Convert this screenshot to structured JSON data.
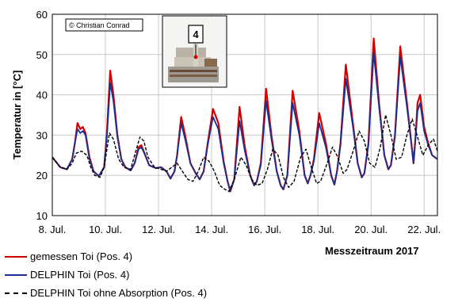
{
  "copyright": "© Christian Conrad",
  "inset": {
    "label": "4"
  },
  "period_label": "Messzeitraum 2017",
  "colors": {
    "measured": "#d40000",
    "delphin": "#1a2f8f",
    "no_absorption": "#000000"
  },
  "chart_data": {
    "type": "line",
    "title": "",
    "xlabel": "",
    "ylabel": "Temperatur in  [°C]",
    "x_unit": "day of July 2017",
    "xlim": [
      8,
      22.5
    ],
    "ylim": [
      10,
      60
    ],
    "x_ticks": [
      8,
      10,
      12,
      14,
      16,
      18,
      20,
      22
    ],
    "x_tick_labels": [
      "8. Jul.",
      "10. Jul.",
      "12. Jul.",
      "14. Jul.",
      "16. Jul.",
      "18. Jul.",
      "20. Jul.",
      "22. Jul."
    ],
    "y_ticks": [
      10,
      20,
      30,
      40,
      50,
      60
    ],
    "y_tick_labels": [
      "10",
      "20",
      "30",
      "40",
      "50",
      "60"
    ],
    "grid": true,
    "legend_position": "bottom-left",
    "series": [
      {
        "name": "gemessen Toi (Pos. 4)",
        "style": "solid",
        "x": [
          8.0,
          8.3,
          8.55,
          8.75,
          8.85,
          8.95,
          9.05,
          9.15,
          9.25,
          9.4,
          9.55,
          9.75,
          9.95,
          10.05,
          10.18,
          10.3,
          10.45,
          10.6,
          10.75,
          10.95,
          11.1,
          11.25,
          11.35,
          11.5,
          11.65,
          11.9,
          12.1,
          12.3,
          12.45,
          12.6,
          12.7,
          12.85,
          13.0,
          13.2,
          13.4,
          13.55,
          13.7,
          13.85,
          14.05,
          14.25,
          14.45,
          14.6,
          14.7,
          14.85,
          15.05,
          15.25,
          15.45,
          15.6,
          15.7,
          15.85,
          16.05,
          16.25,
          16.45,
          16.6,
          16.7,
          16.85,
          17.05,
          17.3,
          17.5,
          17.62,
          17.72,
          17.85,
          18.05,
          18.3,
          18.5,
          18.62,
          18.72,
          18.85,
          19.05,
          19.3,
          19.5,
          19.65,
          19.75,
          19.9,
          20.1,
          20.3,
          20.5,
          20.65,
          20.75,
          20.9,
          21.1,
          21.35,
          21.55,
          21.6,
          21.68,
          21.75,
          21.85,
          22.0,
          22.15,
          22.3,
          22.5
        ],
        "y": [
          24.5,
          22.0,
          21.5,
          24.0,
          28.0,
          33.0,
          31.5,
          32.0,
          30.5,
          24.5,
          21.0,
          19.8,
          22.0,
          30.0,
          46.0,
          40.0,
          30.0,
          24.0,
          22.0,
          21.2,
          23.0,
          27.0,
          27.5,
          25.0,
          22.5,
          21.8,
          22.0,
          21.0,
          19.2,
          21.0,
          25.0,
          34.5,
          30.0,
          23.0,
          20.5,
          19.0,
          21.0,
          28.0,
          36.5,
          33.0,
          23.5,
          18.5,
          16.0,
          19.0,
          37.0,
          27.0,
          20.0,
          17.5,
          18.5,
          23.0,
          41.5,
          30.0,
          21.0,
          17.5,
          16.5,
          20.0,
          41.0,
          31.0,
          20.0,
          18.0,
          20.0,
          24.0,
          35.5,
          28.0,
          20.0,
          17.7,
          21.0,
          28.0,
          47.5,
          34.0,
          23.0,
          19.5,
          20.5,
          28.0,
          54.0,
          38.0,
          25.0,
          21.5,
          22.5,
          30.0,
          52.0,
          38.0,
          26.0,
          23.0,
          30.0,
          38.0,
          40.0,
          32.0,
          28.0,
          25.0,
          24.0
        ]
      },
      {
        "name": "DELPHIN Toi (Pos. 4)",
        "style": "solid",
        "x": [
          8.0,
          8.3,
          8.55,
          8.75,
          8.85,
          8.95,
          9.05,
          9.15,
          9.25,
          9.4,
          9.55,
          9.75,
          9.95,
          10.05,
          10.18,
          10.3,
          10.45,
          10.6,
          10.75,
          10.95,
          11.1,
          11.25,
          11.35,
          11.5,
          11.65,
          11.9,
          12.1,
          12.3,
          12.45,
          12.6,
          12.7,
          12.85,
          13.0,
          13.2,
          13.4,
          13.55,
          13.7,
          13.85,
          14.05,
          14.25,
          14.45,
          14.6,
          14.7,
          14.85,
          15.05,
          15.25,
          15.45,
          15.6,
          15.7,
          15.85,
          16.05,
          16.25,
          16.45,
          16.6,
          16.7,
          16.85,
          17.05,
          17.3,
          17.5,
          17.62,
          17.72,
          17.85,
          18.05,
          18.3,
          18.5,
          18.62,
          18.72,
          18.85,
          19.05,
          19.3,
          19.5,
          19.65,
          19.75,
          19.9,
          20.1,
          20.3,
          20.5,
          20.65,
          20.75,
          20.9,
          21.1,
          21.35,
          21.55,
          21.6,
          21.68,
          21.75,
          21.85,
          22.0,
          22.15,
          22.3,
          22.5
        ],
        "y": [
          24.5,
          22.0,
          21.5,
          24.0,
          28.0,
          31.5,
          30.5,
          31.0,
          30.0,
          24.0,
          21.0,
          19.8,
          22.0,
          29.0,
          43.0,
          38.5,
          29.5,
          24.0,
          22.0,
          21.2,
          23.0,
          26.5,
          27.0,
          25.0,
          22.5,
          21.8,
          22.0,
          21.0,
          19.2,
          21.0,
          25.0,
          33.0,
          29.0,
          23.0,
          20.5,
          19.0,
          21.0,
          27.5,
          34.5,
          31.5,
          23.0,
          18.5,
          16.0,
          19.0,
          33.5,
          26.0,
          20.0,
          17.5,
          18.5,
          22.5,
          38.5,
          29.0,
          21.0,
          17.5,
          16.5,
          20.0,
          38.0,
          30.0,
          20.0,
          18.0,
          20.0,
          23.5,
          33.0,
          27.0,
          20.0,
          17.7,
          21.0,
          27.5,
          44.0,
          33.0,
          23.0,
          19.5,
          20.5,
          27.5,
          50.5,
          37.0,
          25.0,
          21.5,
          22.5,
          29.5,
          49.5,
          37.0,
          26.0,
          23.0,
          29.5,
          36.0,
          38.0,
          31.0,
          27.5,
          25.0,
          24.0
        ]
      },
      {
        "name": "DELPHIN Toi  ohne Absorption (Pos. 4)",
        "style": "dashed",
        "x": [
          8.0,
          8.3,
          8.55,
          8.75,
          8.9,
          9.1,
          9.3,
          9.45,
          9.6,
          9.8,
          9.95,
          10.15,
          10.3,
          10.5,
          10.7,
          10.95,
          11.1,
          11.3,
          11.45,
          11.6,
          11.85,
          12.1,
          12.3,
          12.5,
          12.7,
          12.9,
          13.1,
          13.3,
          13.5,
          13.7,
          13.9,
          14.1,
          14.3,
          14.5,
          14.65,
          14.85,
          15.1,
          15.3,
          15.5,
          15.7,
          15.9,
          16.1,
          16.3,
          16.5,
          16.7,
          16.9,
          17.1,
          17.35,
          17.55,
          17.75,
          17.95,
          18.1,
          18.35,
          18.55,
          18.75,
          18.95,
          19.1,
          19.35,
          19.55,
          19.75,
          19.95,
          20.15,
          20.35,
          20.55,
          20.75,
          20.95,
          21.15,
          21.35,
          21.55,
          21.75,
          21.95,
          22.15,
          22.35,
          22.5
        ],
        "y": [
          24.5,
          22.0,
          21.5,
          23.0,
          25.5,
          26.0,
          25.0,
          22.0,
          20.0,
          19.5,
          22.0,
          30.5,
          29.0,
          24.0,
          22.0,
          21.5,
          25.0,
          29.5,
          28.5,
          24.5,
          22.0,
          21.5,
          21.0,
          22.0,
          23.0,
          21.0,
          19.0,
          18.5,
          21.0,
          24.5,
          23.5,
          21.0,
          17.5,
          16.5,
          16.0,
          19.0,
          24.5,
          22.5,
          19.0,
          17.5,
          18.0,
          21.5,
          26.5,
          25.0,
          19.5,
          17.0,
          18.5,
          24.5,
          26.5,
          22.0,
          18.0,
          18.5,
          23.0,
          27.0,
          24.5,
          20.5,
          21.5,
          26.5,
          31.0,
          28.5,
          23.0,
          22.0,
          27.0,
          35.0,
          30.0,
          24.0,
          24.5,
          30.0,
          34.0,
          29.5,
          25.0,
          27.5,
          29.0,
          26.0
        ]
      }
    ]
  }
}
